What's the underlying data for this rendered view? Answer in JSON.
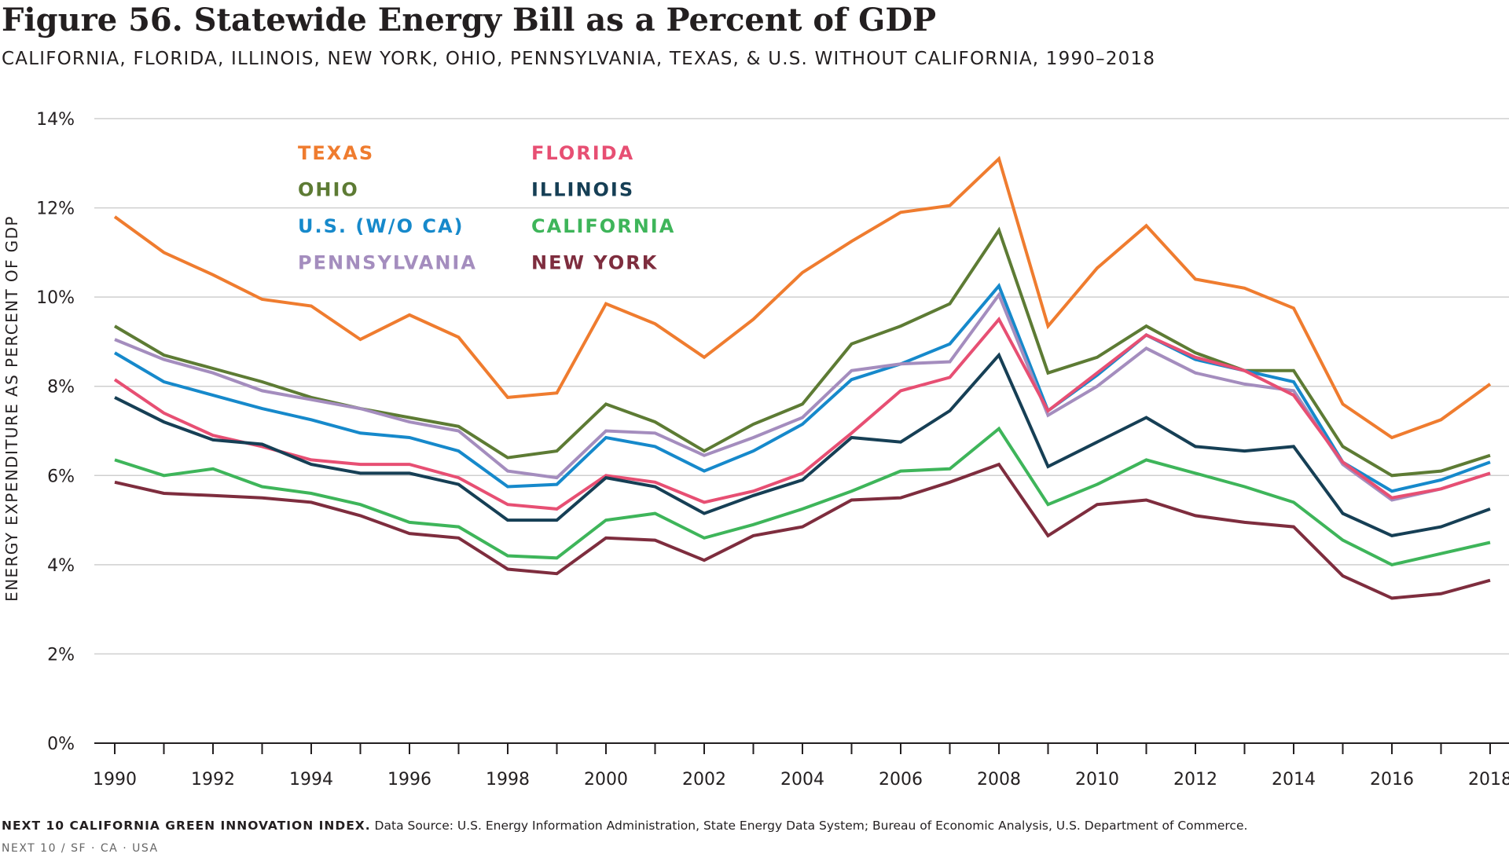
{
  "title": "Figure 56. Statewide Energy Bill as a Percent of GDP",
  "subtitle": "CALIFORNIA, FLORIDA, ILLINOIS, NEW YORK, OHIO, PENNSYLVANIA, TEXAS, & U.S. WITHOUT CALIFORNIA, 1990–2018",
  "footer": {
    "source_lead": "NEXT 10 CALIFORNIA GREEN INNOVATION INDEX.",
    "source_text": " Data Source: U.S. Energy Information Administration, State Energy Data System; Bureau of Economic Analysis, U.S. Department of Commerce.",
    "org": "NEXT 10  /  SF · CA · USA"
  },
  "chart_data": {
    "type": "line",
    "ylabel": "ENERGY EXPENDITURE AS PERCENT OF GDP",
    "xlabel": "",
    "ylim": [
      0,
      14
    ],
    "yticks": [
      0,
      2,
      4,
      6,
      8,
      10,
      12,
      14
    ],
    "ytick_labels": [
      "0%",
      "2%",
      "4%",
      "6%",
      "8%",
      "10%",
      "12%",
      "14%"
    ],
    "x": [
      1990,
      1991,
      1992,
      1993,
      1994,
      1995,
      1996,
      1997,
      1998,
      1999,
      2000,
      2001,
      2002,
      2003,
      2004,
      2005,
      2006,
      2007,
      2008,
      2009,
      2010,
      2011,
      2012,
      2013,
      2014,
      2015,
      2016,
      2017,
      2018
    ],
    "xtick_labels": [
      "1990",
      "1992",
      "1994",
      "1996",
      "1998",
      "2000",
      "2002",
      "2004",
      "2006",
      "2008",
      "2010",
      "2012",
      "2014",
      "2016",
      "2018"
    ],
    "grid": "horizontal",
    "legend_position": "top-left",
    "series": [
      {
        "name": "TEXAS",
        "color": "#ef7c2f",
        "values": [
          11.8,
          11.0,
          10.5,
          9.95,
          9.8,
          9.05,
          9.6,
          9.1,
          7.75,
          7.85,
          9.85,
          9.4,
          8.65,
          9.5,
          10.55,
          11.25,
          11.9,
          12.05,
          13.1,
          9.35,
          10.65,
          11.6,
          10.4,
          10.2,
          9.75,
          7.6,
          6.85,
          7.25,
          8.05
        ]
      },
      {
        "name": "OHIO",
        "color": "#5d7b34",
        "values": [
          9.35,
          8.7,
          8.4,
          8.1,
          7.75,
          7.5,
          7.3,
          7.1,
          6.4,
          6.55,
          7.6,
          7.2,
          6.55,
          7.15,
          7.6,
          8.95,
          9.35,
          9.85,
          11.5,
          8.3,
          8.65,
          9.35,
          8.75,
          8.35,
          8.35,
          6.65,
          6.0,
          6.1,
          6.45
        ]
      },
      {
        "name": "U.S. (W/O CA)",
        "color": "#1689cb",
        "values": [
          8.75,
          8.1,
          7.8,
          7.5,
          7.25,
          6.95,
          6.85,
          6.55,
          5.75,
          5.8,
          6.85,
          6.65,
          6.1,
          6.55,
          7.15,
          8.15,
          8.5,
          8.95,
          10.25,
          7.45,
          8.25,
          9.15,
          8.6,
          8.35,
          8.1,
          6.3,
          5.65,
          5.9,
          6.3
        ]
      },
      {
        "name": "PENNSYLVANIA",
        "color": "#a48dbe",
        "values": [
          9.05,
          8.6,
          8.3,
          7.9,
          7.7,
          7.5,
          7.2,
          7.0,
          6.1,
          5.95,
          7.0,
          6.95,
          6.45,
          6.85,
          7.3,
          8.35,
          8.5,
          8.55,
          10.05,
          7.35,
          8.0,
          8.85,
          8.3,
          8.05,
          7.9,
          6.25,
          5.45,
          5.7,
          6.05
        ]
      },
      {
        "name": "FLORIDA",
        "color": "#e74f73",
        "values": [
          8.15,
          7.4,
          6.9,
          6.65,
          6.35,
          6.25,
          6.25,
          5.95,
          5.35,
          5.25,
          6.0,
          5.85,
          5.4,
          5.65,
          6.05,
          6.95,
          7.9,
          8.2,
          9.5,
          7.45,
          8.3,
          9.15,
          8.65,
          8.35,
          7.8,
          6.3,
          5.5,
          5.7,
          6.05
        ]
      },
      {
        "name": "ILLINOIS",
        "color": "#163f55",
        "values": [
          7.75,
          7.2,
          6.8,
          6.7,
          6.25,
          6.05,
          6.05,
          5.8,
          5.0,
          5.0,
          5.95,
          5.75,
          5.15,
          5.55,
          5.9,
          6.85,
          6.75,
          7.45,
          8.7,
          6.2,
          6.75,
          7.3,
          6.65,
          6.55,
          6.65,
          5.15,
          4.65,
          4.85,
          5.25
        ]
      },
      {
        "name": "CALIFORNIA",
        "color": "#3eb55a",
        "values": [
          6.35,
          6.0,
          6.15,
          5.75,
          5.6,
          5.35,
          4.95,
          4.85,
          4.2,
          4.15,
          5.0,
          5.15,
          4.6,
          4.9,
          5.25,
          5.65,
          6.1,
          6.15,
          7.05,
          5.35,
          5.8,
          6.35,
          6.05,
          5.75,
          5.4,
          4.55,
          4.0,
          4.25,
          4.5
        ]
      },
      {
        "name": "NEW YORK",
        "color": "#7e2d3e",
        "values": [
          5.85,
          5.6,
          5.55,
          5.5,
          5.4,
          5.1,
          4.7,
          4.6,
          3.9,
          3.8,
          4.6,
          4.55,
          4.1,
          4.65,
          4.85,
          5.45,
          5.5,
          5.85,
          6.25,
          4.65,
          5.35,
          5.45,
          5.1,
          4.95,
          4.85,
          3.75,
          3.25,
          3.35,
          3.65
        ]
      }
    ]
  }
}
